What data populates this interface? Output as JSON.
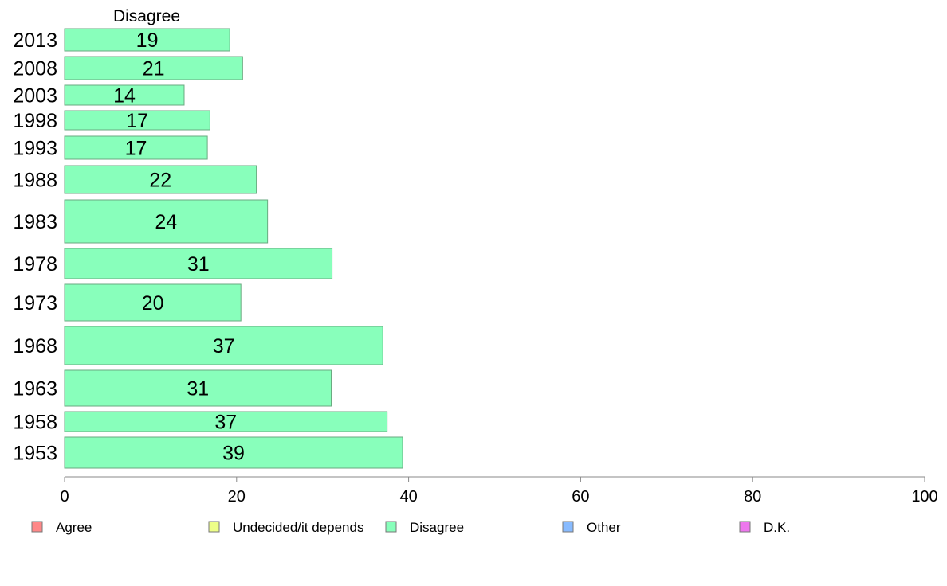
{
  "chart_data": {
    "type": "bar",
    "orientation": "horizontal",
    "stacked": true,
    "column_header": "Disagree",
    "categories": [
      "2013",
      "2008",
      "2003",
      "1998",
      "1993",
      "1988",
      "1983",
      "1978",
      "1973",
      "1968",
      "1963",
      "1958",
      "1953"
    ],
    "series": [
      {
        "name": "Disagree",
        "color": "#88ffbb",
        "values": [
          19.2,
          20.7,
          13.9,
          16.9,
          16.6,
          22.3,
          23.6,
          31.1,
          20.5,
          37.0,
          31.0,
          37.5,
          39.3
        ],
        "labels": [
          "19",
          "21",
          "14",
          "17",
          "17",
          "22",
          "24",
          "31",
          "20",
          "37",
          "31",
          "37",
          "39"
        ]
      }
    ],
    "xlim": [
      0,
      100
    ],
    "xticks": [
      "0",
      "20",
      "40",
      "60",
      "80",
      "100"
    ],
    "grid": false,
    "legend_position": "bottom",
    "legend": [
      {
        "label": "Agree",
        "color": "#ff8888"
      },
      {
        "label": "Undecided/it depends",
        "color": "#eeff88"
      },
      {
        "label": "Disagree",
        "color": "#88ffbb"
      },
      {
        "label": "Other",
        "color": "#88bbff"
      },
      {
        "label": "D.K.",
        "color": "#ee77ee"
      }
    ]
  }
}
